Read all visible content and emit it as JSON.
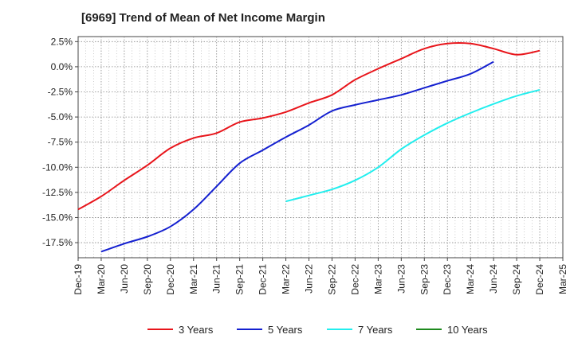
{
  "chart_data": {
    "type": "line",
    "title": "[6969]  Trend of Mean of Net Income Margin",
    "y_ticks": [
      "2.5%",
      "0.0%",
      "-2.5%",
      "-5.0%",
      "-7.5%",
      "-10.0%",
      "-12.5%",
      "-15.0%",
      "-17.5%"
    ],
    "y_tick_values": [
      2.5,
      0,
      -2.5,
      -5,
      -7.5,
      -10,
      -12.5,
      -15,
      -17.5
    ],
    "ylim": [
      -19,
      3
    ],
    "x_ticks": [
      "Dec-19",
      "Mar-20",
      "Jun-20",
      "Sep-20",
      "Dec-20",
      "Mar-21",
      "Jun-21",
      "Sep-21",
      "Dec-21",
      "Mar-22",
      "Jun-22",
      "Sep-22",
      "Dec-22",
      "Mar-23",
      "Jun-23",
      "Sep-23",
      "Dec-23",
      "Mar-24",
      "Jun-24",
      "Sep-24",
      "Dec-24",
      "Mar-25"
    ],
    "grid": true,
    "legend_position": "bottom",
    "series": [
      {
        "name": "3 Years",
        "color": "#e8151b",
        "start_index": 0,
        "values": [
          -14.2,
          -12.9,
          -11.3,
          -9.8,
          -8.1,
          -7.1,
          -6.6,
          -5.5,
          -5.1,
          -4.5,
          -3.6,
          -2.8,
          -1.3,
          -0.2,
          0.8,
          1.8,
          2.3,
          2.3,
          1.8,
          1.2,
          1.6
        ]
      },
      {
        "name": "5 Years",
        "color": "#1420d0",
        "start_index": 1,
        "values": [
          -18.4,
          -17.6,
          -16.9,
          -15.9,
          -14.2,
          -11.9,
          -9.6,
          -8.3,
          -7.0,
          -5.8,
          -4.4,
          -3.8,
          -3.3,
          -2.8,
          -2.1,
          -1.4,
          -0.7,
          0.5
        ]
      },
      {
        "name": "7 Years",
        "color": "#22eeee",
        "start_index": 9,
        "values": [
          -13.4,
          -12.8,
          -12.2,
          -11.3,
          -10.0,
          -8.2,
          -6.8,
          -5.6,
          -4.6,
          -3.7,
          -2.9,
          -2.3
        ]
      },
      {
        "name": "10 Years",
        "color": "#1e8a1e",
        "start_index": 0,
        "values": []
      }
    ]
  }
}
